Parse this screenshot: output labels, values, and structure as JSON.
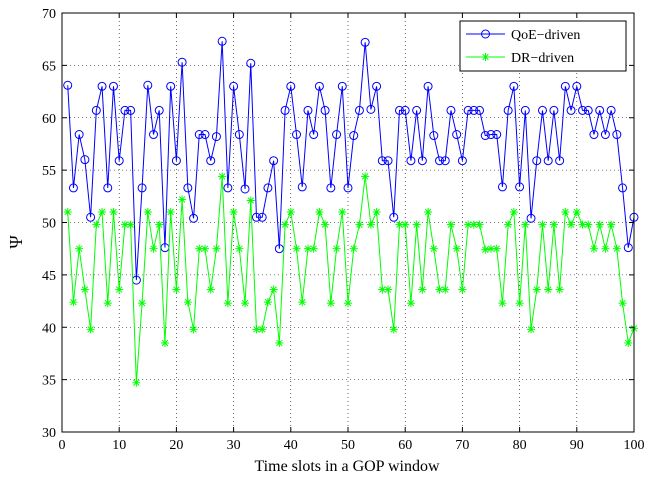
{
  "chart_data": {
    "type": "line",
    "xlabel": "Time slots in a GOP window",
    "ylabel": "Ψ",
    "xlim": [
      0,
      100
    ],
    "ylim": [
      30,
      70
    ],
    "xticks": [
      0,
      10,
      20,
      30,
      40,
      50,
      60,
      70,
      80,
      90,
      100
    ],
    "yticks": [
      30,
      35,
      40,
      45,
      50,
      55,
      60,
      65,
      70
    ],
    "xtick_labels": [
      "0",
      "10",
      "20",
      "30",
      "40",
      "50",
      "60",
      "70",
      "80",
      "90",
      "100"
    ],
    "ytick_labels": [
      "30",
      "35",
      "40",
      "45",
      "50",
      "55",
      "60",
      "65",
      "70"
    ],
    "legend_position": "top-right",
    "grid": true,
    "x": [
      1,
      2,
      3,
      4,
      5,
      6,
      7,
      8,
      9,
      10,
      11,
      12,
      13,
      14,
      15,
      16,
      17,
      18,
      19,
      20,
      21,
      22,
      23,
      24,
      25,
      26,
      27,
      28,
      29,
      30,
      31,
      32,
      33,
      34,
      35,
      36,
      37,
      38,
      39,
      40,
      41,
      42,
      43,
      44,
      45,
      46,
      47,
      48,
      49,
      50,
      51,
      52,
      53,
      54,
      55,
      56,
      57,
      58,
      59,
      60,
      61,
      62,
      63,
      64,
      65,
      66,
      67,
      68,
      69,
      70,
      71,
      72,
      73,
      74,
      75,
      76,
      77,
      78,
      79,
      80,
      81,
      82,
      83,
      84,
      85,
      86,
      87,
      88,
      89,
      90,
      91,
      92,
      93,
      94,
      95,
      96,
      97,
      98,
      99,
      100
    ],
    "series": [
      {
        "name": "QoE−driven",
        "color": "#0000ff",
        "marker": "circle",
        "values": [
          63.1,
          53.3,
          58.4,
          56.0,
          50.5,
          60.7,
          63.0,
          53.3,
          63.0,
          55.9,
          60.7,
          60.7,
          44.5,
          53.3,
          63.1,
          58.4,
          60.7,
          47.6,
          63.0,
          55.9,
          65.3,
          53.3,
          50.4,
          58.4,
          58.4,
          55.9,
          58.2,
          67.3,
          53.3,
          63.0,
          58.4,
          53.2,
          65.2,
          50.5,
          50.5,
          53.3,
          55.9,
          47.5,
          60.7,
          63.0,
          58.4,
          53.4,
          60.7,
          58.4,
          63.0,
          60.7,
          53.3,
          58.4,
          63.0,
          53.3,
          58.3,
          60.7,
          67.2,
          60.8,
          63.0,
          55.9,
          55.9,
          50.5,
          60.7,
          60.7,
          55.9,
          60.7,
          55.9,
          63.0,
          58.3,
          55.9,
          55.9,
          60.7,
          58.4,
          55.9,
          60.7,
          60.7,
          60.7,
          58.3,
          58.4,
          58.4,
          53.4,
          60.7,
          63.0,
          53.4,
          60.7,
          50.4,
          55.9,
          60.7,
          55.9,
          60.7,
          55.9,
          63.0,
          60.7,
          63.0,
          60.7,
          60.7,
          58.4,
          60.7,
          58.4,
          60.7,
          58.4,
          53.3,
          47.6,
          50.5
        ]
      },
      {
        "name": "DR−driven",
        "color": "#00ff00",
        "marker": "asterisk",
        "values": [
          51.0,
          42.4,
          47.5,
          43.6,
          39.8,
          49.8,
          51.0,
          42.3,
          51.0,
          43.6,
          49.8,
          49.8,
          34.7,
          42.3,
          51.0,
          47.5,
          49.8,
          38.5,
          51.0,
          43.6,
          52.2,
          42.4,
          39.8,
          47.5,
          47.5,
          43.6,
          47.5,
          54.4,
          42.3,
          51.0,
          47.5,
          42.3,
          52.1,
          39.8,
          39.8,
          42.4,
          43.6,
          38.5,
          49.8,
          51.0,
          47.5,
          42.4,
          47.5,
          47.5,
          51.0,
          49.8,
          42.3,
          47.5,
          51.0,
          42.3,
          47.5,
          49.8,
          54.4,
          49.8,
          51.0,
          43.6,
          43.6,
          39.8,
          49.8,
          49.8,
          42.3,
          49.8,
          43.6,
          51.0,
          47.5,
          43.6,
          43.6,
          49.8,
          47.5,
          43.6,
          49.8,
          49.8,
          49.8,
          47.4,
          47.5,
          47.5,
          42.3,
          49.8,
          51.0,
          42.3,
          49.8,
          39.8,
          43.6,
          49.8,
          43.6,
          49.8,
          43.6,
          51.0,
          49.8,
          51.0,
          49.8,
          49.8,
          47.5,
          49.8,
          47.5,
          49.8,
          47.5,
          42.3,
          38.5,
          39.9
        ]
      }
    ]
  }
}
